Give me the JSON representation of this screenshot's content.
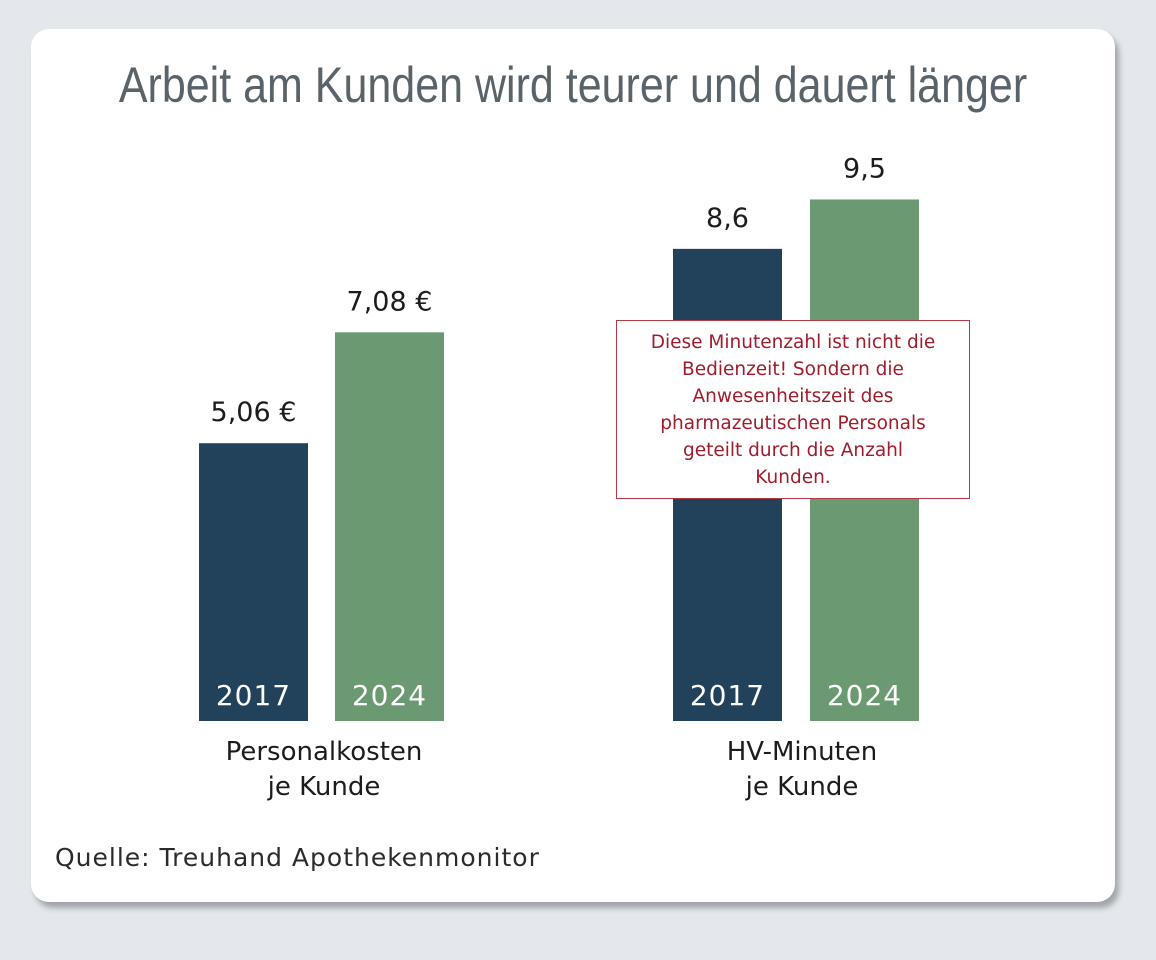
{
  "chart_data": {
    "type": "bar",
    "title": "Arbeit am Kunden wird teurer und dauert länger",
    "groups": [
      {
        "label_lines": [
          "Personalkosten",
          "je Kunde"
        ],
        "bars": [
          {
            "year": "2017",
            "value": 5.06,
            "value_label": "5,06 €",
            "series": "2017"
          },
          {
            "year": "2024",
            "value": 7.08,
            "value_label": "7,08 €",
            "series": "2024"
          }
        ]
      },
      {
        "label_lines": [
          "HV-Minuten",
          "je Kunde"
        ],
        "bars": [
          {
            "year": "2017",
            "value": 8.6,
            "value_label": "8,6",
            "series": "2017"
          },
          {
            "year": "2024",
            "value": 9.5,
            "value_label": "9,5",
            "series": "2024"
          }
        ]
      }
    ],
    "colors": {
      "2017": "#22415a",
      "2024": "#6b9a72"
    },
    "annotation_lines": [
      "Diese Minutenzahl ist nicht die",
      "Bedienzeit! Sondern die",
      "Anwesenheitszeit des",
      "pharmazeutischen Personals",
      "geteilt durch die Anzahl",
      "Kunden."
    ],
    "source": "Quelle: Treuhand Apothekenmonitor"
  }
}
